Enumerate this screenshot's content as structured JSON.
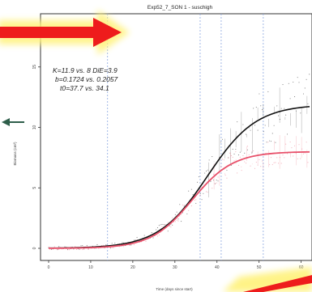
{
  "chart_data": {
    "type": "line",
    "title": "Exp52_7_SON 1 - suschigh",
    "xlabel": "Time (days since start)",
    "ylabel": "Biomass (cm²)",
    "xlim": [
      0,
      62
    ],
    "ylim": [
      -0.4,
      19
    ],
    "x_ticks": [
      0,
      10,
      20,
      30,
      40,
      50,
      60
    ],
    "y_ticks": [
      0,
      5,
      10,
      15
    ],
    "vertical_reference_lines_x": [
      14,
      36,
      41,
      51
    ],
    "grid": false,
    "annotation_lines": [
      "K=11.9 vs. 8 DiE=3.9",
      "b=0.1724 vs. 0.2057",
      "t0=37.7 vs. 34.1"
    ],
    "series": [
      {
        "color": "#111111",
        "model": {
          "K": 11.9,
          "b": 0.1724,
          "t0": 37.7
        }
      },
      {
        "color": "#e8506a",
        "model": {
          "K": 8,
          "b": 0.2057,
          "t0": 34.1
        }
      }
    ],
    "overlay_arrows": [
      {
        "shape": "arrow-right",
        "color": "#ee1c1c",
        "glow": "#fff27a"
      },
      {
        "shape": "arrow-left-diagonal",
        "color": "#2e5e4a"
      },
      {
        "shape": "arrow-diagonal-partial",
        "color": "#ee1c1c",
        "glow": "#fff27a"
      }
    ]
  }
}
